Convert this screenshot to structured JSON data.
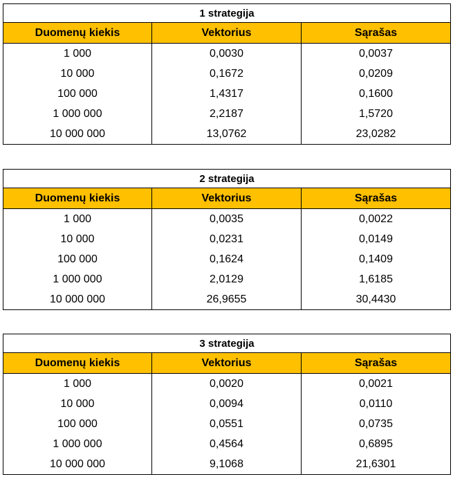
{
  "tables": [
    {
      "title": "1 strategija",
      "headers": [
        "Duomenų kiekis",
        "Vektorius",
        "Sąrašas"
      ],
      "rows": [
        [
          "1 000",
          "0,0030",
          "0,0037"
        ],
        [
          "10 000",
          "0,1672",
          "0,0209"
        ],
        [
          "100 000",
          "1,4317",
          "0,1600"
        ],
        [
          "1 000 000",
          "2,2187",
          "1,5720"
        ],
        [
          "10 000 000",
          "13,0762",
          "23,0282"
        ]
      ]
    },
    {
      "title": "2 strategija",
      "headers": [
        "Duomenų kiekis",
        "Vektorius",
        "Sąrašas"
      ],
      "rows": [
        [
          "1 000",
          "0,0035",
          "0,0022"
        ],
        [
          "10 000",
          "0,0231",
          "0,0149"
        ],
        [
          "100 000",
          "0,1624",
          "0,1409"
        ],
        [
          "1 000 000",
          "2,0129",
          "1,6185"
        ],
        [
          "10 000 000",
          "26,9655",
          "30,4430"
        ]
      ]
    },
    {
      "title": "3 strategija",
      "headers": [
        "Duomenų kiekis",
        "Vektorius",
        "Sąrašas"
      ],
      "rows": [
        [
          "1 000",
          "0,0020",
          "0,0021"
        ],
        [
          "10 000",
          "0,0094",
          "0,0110"
        ],
        [
          "100 000",
          "0,0551",
          "0,0735"
        ],
        [
          "1 000 000",
          "0,4564",
          "0,6895"
        ],
        [
          "10 000 000",
          "9,1068",
          "21,6301"
        ]
      ]
    }
  ],
  "colors": {
    "header_background": "#ffc000",
    "border": "#000000",
    "background": "#ffffff"
  }
}
